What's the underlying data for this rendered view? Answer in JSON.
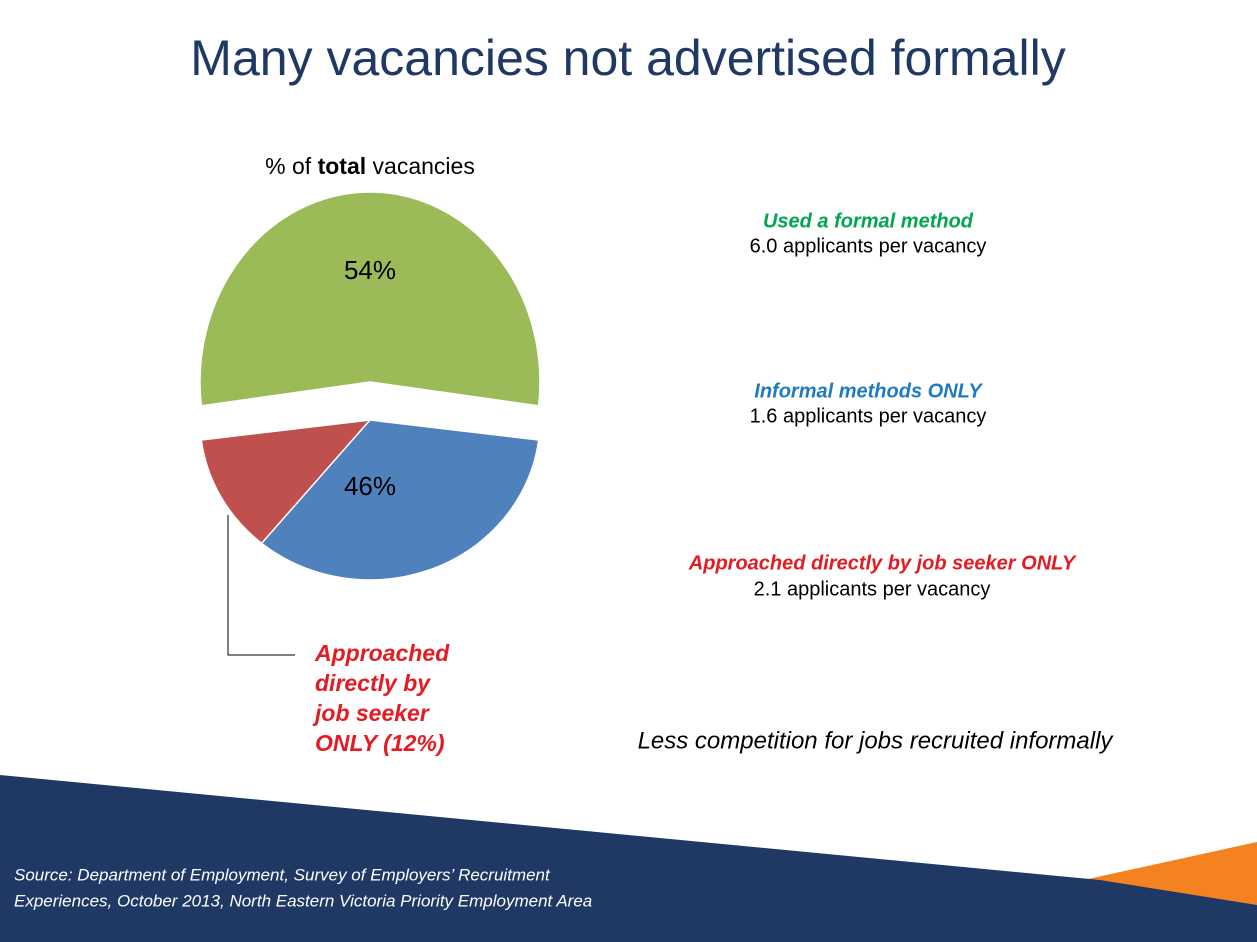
{
  "page_title": "Many vacancies not advertised formally",
  "chart_data": {
    "type": "pie",
    "title": [
      "% of",
      "total",
      "vacancies"
    ],
    "categories": [
      "Used a formal method",
      "Informal methods ONLY"
    ],
    "details": [
      "6.0 applicants per vacancy",
      "1.6 applicants per vacancy"
    ],
    "values": [
      54,
      46
    ],
    "value_labels": [
      "54%",
      "46%"
    ],
    "colors": [
      "#9bbb59",
      "#4f81bd"
    ],
    "label_colors": [
      "#00a651",
      "#1f7ac2"
    ],
    "sub_slice": {
      "name": "Approached directly by job seeker ONLY",
      "detail": "2.1 applicants per vacancy",
      "value": 12,
      "color": "#c0504d",
      "label_color": "#e31b23",
      "callout_lines": [
        "Approached",
        "directly by",
        "job seeker",
        "ONLY (12%)"
      ]
    }
  },
  "note": "Less competition for jobs recruited informally",
  "source": [
    "Source: Department of Employment, Survey of Employers’ Recruitment",
    "Experiences, October 2013, North Eastern Victoria Priority Employment Area"
  ]
}
